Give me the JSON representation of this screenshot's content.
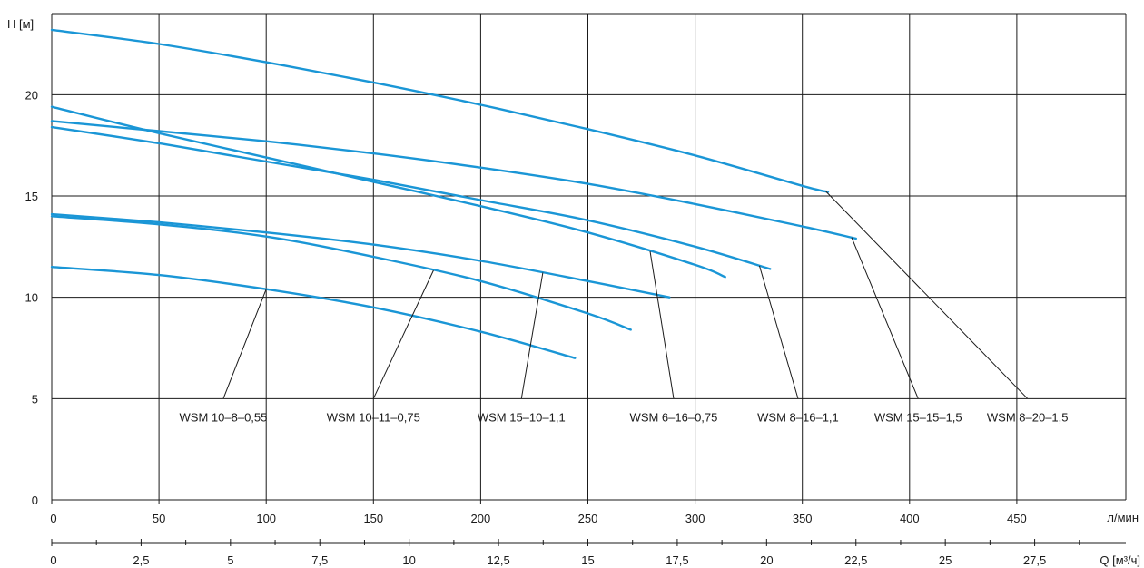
{
  "chart_data": {
    "type": "line",
    "title": "",
    "ylabel": "H [м]",
    "xlabel": "л/мин",
    "x2label": "Q [м³/ч]",
    "ylim": [
      0,
      24
    ],
    "xlim": [
      0,
      500
    ],
    "x2lim": [
      0,
      30
    ],
    "y_ticks": [
      0,
      5,
      10,
      15,
      20
    ],
    "x_ticks": [
      0,
      50,
      100,
      150,
      200,
      250,
      300,
      350,
      400,
      450
    ],
    "x2_ticks": [
      "0",
      "2,5",
      "5",
      "7,5",
      "10",
      "12,5",
      "15",
      "17,5",
      "20",
      "22,5",
      "25",
      "27,5"
    ],
    "x2_tick_values": [
      0,
      2.5,
      5,
      7.5,
      10,
      12.5,
      15,
      17.5,
      20,
      22.5,
      25,
      27.5
    ],
    "grid": true,
    "color": "#1a96d6",
    "series": [
      {
        "name": "WSM 10–8–0,55",
        "x": [
          0,
          50,
          100,
          150,
          200,
          244
        ],
        "y": [
          11.5,
          11.1,
          10.4,
          9.5,
          8.3,
          7.0
        ],
        "label_x": 80,
        "label_y": 5,
        "anchor_x": 100
      },
      {
        "name": "WSM 10–11–0,75",
        "x": [
          0,
          50,
          100,
          150,
          200,
          250,
          270
        ],
        "y": [
          14.0,
          13.6,
          13.0,
          12.0,
          10.8,
          9.2,
          8.4
        ],
        "label_x": 150,
        "label_y": 5,
        "anchor_x": 178
      },
      {
        "name": "WSM 15–10–1,1",
        "x": [
          0,
          50,
          100,
          150,
          200,
          250,
          288
        ],
        "y": [
          14.1,
          13.7,
          13.2,
          12.6,
          11.8,
          10.8,
          10.0
        ],
        "label_x": 219,
        "label_y": 5,
        "anchor_x": 229
      },
      {
        "name": "WSM 6–16–0,75",
        "x": [
          0,
          50,
          100,
          150,
          200,
          250,
          300,
          314
        ],
        "y": [
          19.4,
          18.1,
          16.9,
          15.7,
          14.5,
          13.2,
          11.6,
          11.0
        ],
        "label_x": 290,
        "label_y": 5,
        "anchor_x": 279
      },
      {
        "name": "WSM 8–16–1,1",
        "x": [
          0,
          50,
          100,
          150,
          200,
          250,
          300,
          335
        ],
        "y": [
          18.4,
          17.6,
          16.7,
          15.8,
          14.8,
          13.8,
          12.5,
          11.4
        ],
        "label_x": 348,
        "label_y": 5,
        "anchor_x": 330
      },
      {
        "name": "WSM 15–15–1,5",
        "x": [
          0,
          50,
          100,
          150,
          200,
          250,
          300,
          350,
          375
        ],
        "y": [
          18.7,
          18.2,
          17.7,
          17.1,
          16.4,
          15.6,
          14.6,
          13.5,
          12.9
        ],
        "label_x": 404,
        "label_y": 5,
        "anchor_x": 373
      },
      {
        "name": "WSM 8–20–1,5",
        "x": [
          0,
          50,
          100,
          150,
          200,
          250,
          300,
          350,
          362
        ],
        "y": [
          23.2,
          22.5,
          21.6,
          20.6,
          19.5,
          18.3,
          17.0,
          15.5,
          15.2
        ],
        "label_x": 455,
        "label_y": 5,
        "anchor_x": 361
      }
    ]
  }
}
